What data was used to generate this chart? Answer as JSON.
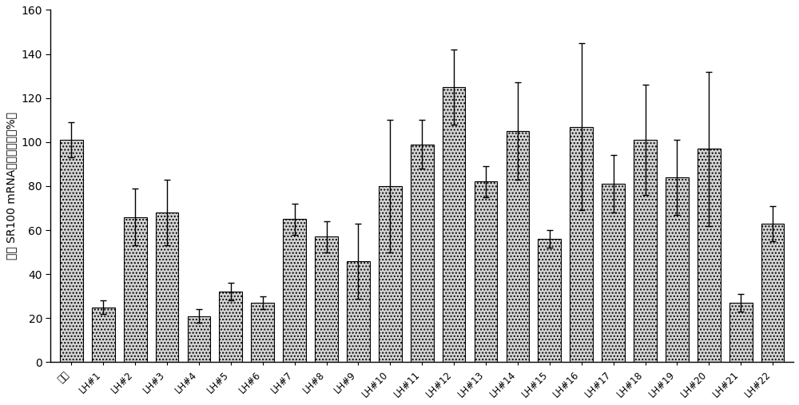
{
  "categories": [
    "対照",
    "LH#1",
    "LH#2",
    "LH#3",
    "LH#4",
    "LH#5",
    "LH#6",
    "LH#7",
    "LH#8",
    "LH#9",
    "LH#10",
    "LH#11",
    "LH#12",
    "LH#13",
    "LH#14",
    "LH#15",
    "LH#16",
    "LH#17",
    "LH#18",
    "LH#19",
    "LH#20",
    "LH#21",
    "LH#22"
  ],
  "categories_display": [
    "対照",
    "LH#1",
    "LH#2",
    "LH#3",
    "LH#4",
    "LH#5",
    "LH#6",
    "LH#7",
    "LH#8",
    "LH#9",
    "LH#10",
    "LH#11",
    "LH#12",
    "LH#13",
    "LH#14",
    "LH#15",
    "LH#16",
    "LH#17",
    "LH#18",
    "LH#19",
    "LH#20",
    "LH#21",
    "LH#22"
  ],
  "values": [
    101,
    25,
    66,
    68,
    21,
    32,
    27,
    65,
    57,
    46,
    80,
    99,
    125,
    82,
    105,
    56,
    107,
    81,
    101,
    84,
    97,
    27,
    63
  ],
  "errors": [
    8,
    3,
    13,
    15,
    3,
    4,
    3,
    7,
    7,
    17,
    30,
    11,
    17,
    7,
    22,
    4,
    38,
    13,
    25,
    17,
    35,
    4,
    8
  ],
  "bar_color": "#d4d4d4",
  "bar_edge_color": "#000000",
  "hatch": "....",
  "ylabel": "相対 SR100 mRNA（相対于对照%）",
  "ylim": [
    0,
    160
  ],
  "yticks": [
    0,
    20,
    40,
    60,
    80,
    100,
    120,
    140,
    160
  ],
  "figsize": [
    10.0,
    5.07
  ],
  "dpi": 100,
  "bg_color": "#ffffff",
  "bar_width": 0.72,
  "capsize": 3,
  "xtick_label_fontsize": 8.5,
  "ytick_label_fontsize": 10,
  "ylabel_fontsize": 10
}
